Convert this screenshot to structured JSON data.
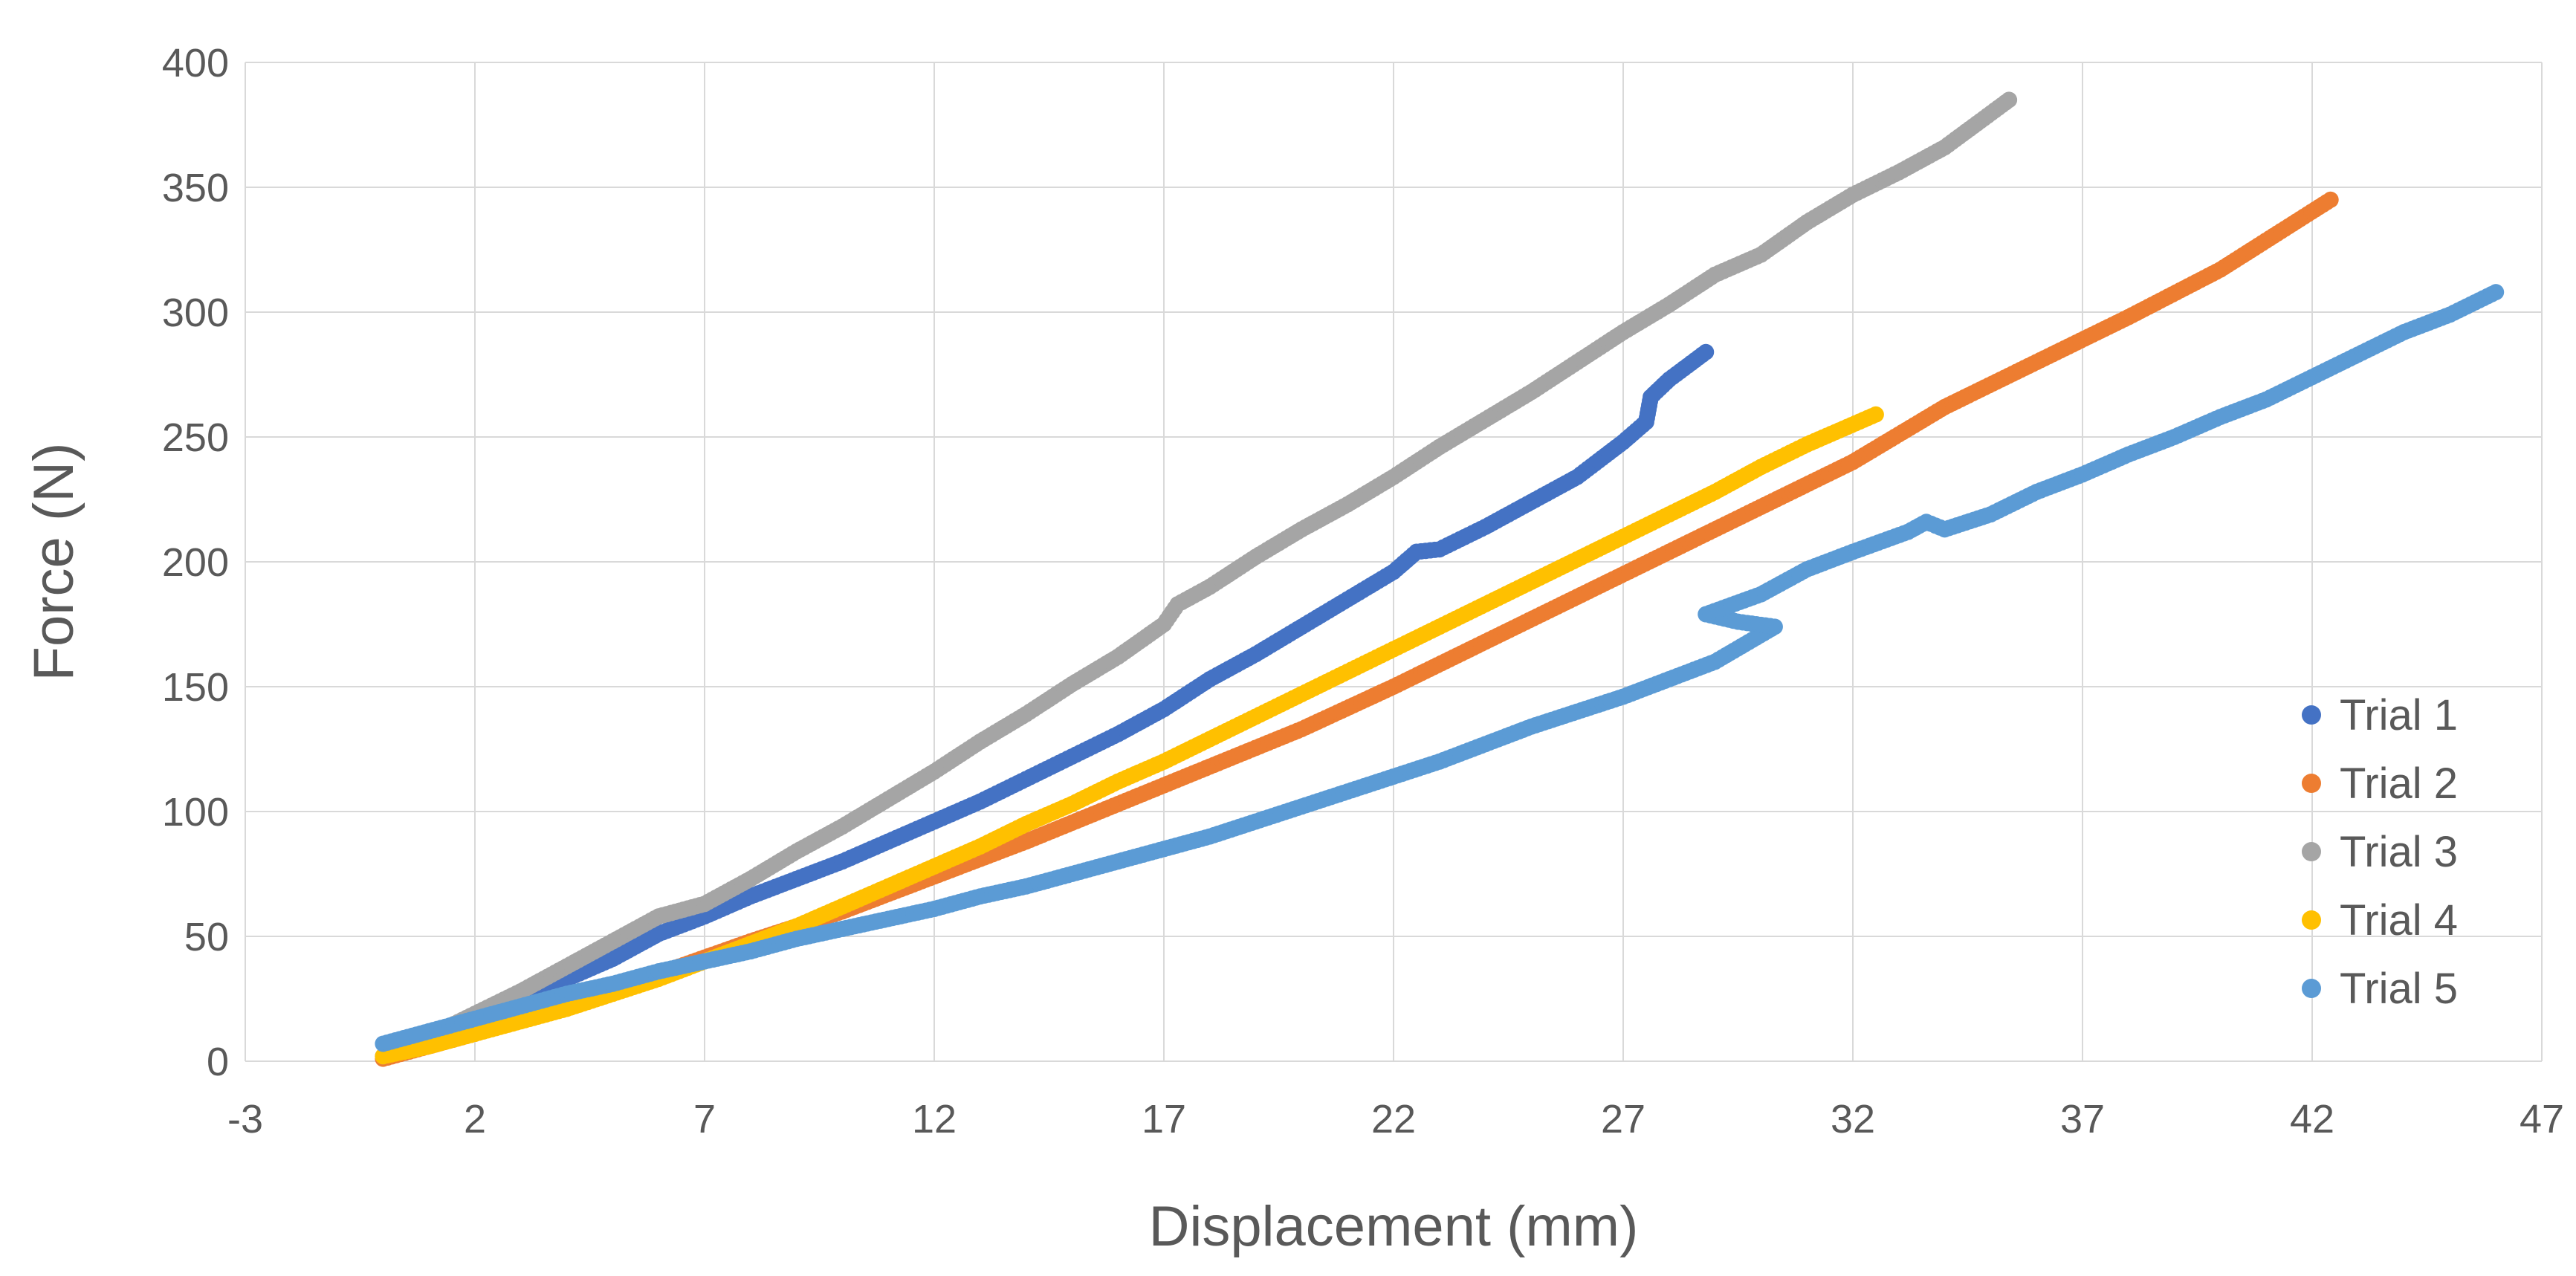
{
  "chart_data": {
    "type": "scatter",
    "title": "",
    "xlabel": "Displacement (mm)",
    "ylabel": "Force (N)",
    "xlim": [
      -3,
      47
    ],
    "ylim": [
      0,
      400
    ],
    "x_ticks": [
      -3,
      2,
      7,
      12,
      17,
      22,
      27,
      32,
      37,
      42,
      47
    ],
    "y_ticks": [
      0,
      50,
      100,
      150,
      200,
      250,
      300,
      350,
      400
    ],
    "grid": true,
    "legend_position": "right",
    "series": [
      {
        "name": "Trial 1",
        "color": "#4472c4",
        "points": [
          [
            0,
            2
          ],
          [
            1,
            9
          ],
          [
            2,
            17
          ],
          [
            3,
            25
          ],
          [
            4,
            33
          ],
          [
            5,
            41
          ],
          [
            6,
            51
          ],
          [
            7,
            58
          ],
          [
            8,
            66
          ],
          [
            9,
            73
          ],
          [
            10,
            80
          ],
          [
            11,
            88
          ],
          [
            12,
            96
          ],
          [
            13,
            104
          ],
          [
            14,
            113
          ],
          [
            15,
            122
          ],
          [
            16,
            131
          ],
          [
            17,
            141
          ],
          [
            18,
            153
          ],
          [
            19,
            163
          ],
          [
            20,
            174
          ],
          [
            21,
            185
          ],
          [
            22,
            196
          ],
          [
            22.5,
            204
          ],
          [
            23,
            205
          ],
          [
            24,
            214
          ],
          [
            25,
            224
          ],
          [
            26,
            234
          ],
          [
            27,
            248
          ],
          [
            27.5,
            256
          ],
          [
            27.6,
            266
          ],
          [
            28,
            273
          ],
          [
            28.8,
            284
          ]
        ]
      },
      {
        "name": "Trial 2",
        "color": "#ed7d31",
        "points": [
          [
            0,
            1
          ],
          [
            2,
            11
          ],
          [
            4,
            22
          ],
          [
            6,
            35
          ],
          [
            8,
            48
          ],
          [
            10,
            60
          ],
          [
            12,
            74
          ],
          [
            14,
            88
          ],
          [
            16,
            103
          ],
          [
            18,
            118
          ],
          [
            20,
            133
          ],
          [
            22,
            150
          ],
          [
            24,
            168
          ],
          [
            26,
            186
          ],
          [
            28,
            204
          ],
          [
            30,
            222
          ],
          [
            32,
            240
          ],
          [
            34,
            262
          ],
          [
            36,
            280
          ],
          [
            38,
            298
          ],
          [
            40,
            317
          ],
          [
            42.4,
            345
          ]
        ]
      },
      {
        "name": "Trial 3",
        "color": "#a5a5a5",
        "points": [
          [
            0,
            2
          ],
          [
            1,
            10
          ],
          [
            2,
            19
          ],
          [
            3,
            28
          ],
          [
            4,
            38
          ],
          [
            5,
            48
          ],
          [
            6,
            58
          ],
          [
            7,
            63
          ],
          [
            8,
            73
          ],
          [
            9,
            84
          ],
          [
            10,
            94
          ],
          [
            11,
            105
          ],
          [
            12,
            116
          ],
          [
            13,
            128
          ],
          [
            14,
            139
          ],
          [
            15,
            151
          ],
          [
            16,
            162
          ],
          [
            17,
            175
          ],
          [
            17.3,
            183
          ],
          [
            18,
            190
          ],
          [
            19,
            202
          ],
          [
            20,
            213
          ],
          [
            21,
            223
          ],
          [
            22,
            234
          ],
          [
            23,
            246
          ],
          [
            24,
            257
          ],
          [
            25,
            268
          ],
          [
            26,
            280
          ],
          [
            27,
            292
          ],
          [
            28,
            303
          ],
          [
            29,
            315
          ],
          [
            30,
            323
          ],
          [
            31,
            336
          ],
          [
            32,
            347
          ],
          [
            33,
            356
          ],
          [
            34,
            366
          ],
          [
            35.4,
            385
          ]
        ]
      },
      {
        "name": "Trial 4",
        "color": "#ffc000",
        "points": [
          [
            0,
            2
          ],
          [
            1,
            6
          ],
          [
            2,
            11
          ],
          [
            3,
            16
          ],
          [
            4,
            21
          ],
          [
            5,
            27
          ],
          [
            6,
            33
          ],
          [
            7,
            40
          ],
          [
            8,
            47
          ],
          [
            9,
            54
          ],
          [
            10,
            62
          ],
          [
            11,
            70
          ],
          [
            12,
            78
          ],
          [
            13,
            86
          ],
          [
            14,
            95
          ],
          [
            15,
            103
          ],
          [
            16,
            112
          ],
          [
            17,
            120
          ],
          [
            18,
            129
          ],
          [
            19,
            138
          ],
          [
            20,
            147
          ],
          [
            21,
            156
          ],
          [
            22,
            165
          ],
          [
            23,
            174
          ],
          [
            24,
            183
          ],
          [
            25,
            192
          ],
          [
            26,
            201
          ],
          [
            27,
            210
          ],
          [
            28,
            219
          ],
          [
            29,
            228
          ],
          [
            30,
            238
          ],
          [
            31,
            247
          ],
          [
            32.5,
            259
          ]
        ]
      },
      {
        "name": "Trial 5",
        "color": "#5b9bd5",
        "points": [
          [
            0,
            7
          ],
          [
            1,
            12
          ],
          [
            2,
            17
          ],
          [
            3,
            22
          ],
          [
            4,
            27
          ],
          [
            5,
            31
          ],
          [
            6,
            36
          ],
          [
            7,
            40
          ],
          [
            8,
            44
          ],
          [
            9,
            49
          ],
          [
            10,
            53
          ],
          [
            11,
            57
          ],
          [
            12,
            61
          ],
          [
            13,
            66
          ],
          [
            14,
            70
          ],
          [
            15,
            75
          ],
          [
            16,
            80
          ],
          [
            17,
            85
          ],
          [
            18,
            90
          ],
          [
            19,
            96
          ],
          [
            20,
            102
          ],
          [
            21,
            108
          ],
          [
            22,
            114
          ],
          [
            23,
            120
          ],
          [
            24,
            127
          ],
          [
            25,
            134
          ],
          [
            26,
            140
          ],
          [
            27,
            146
          ],
          [
            28,
            153
          ],
          [
            29,
            160
          ],
          [
            30.3,
            174
          ],
          [
            29.5,
            176
          ],
          [
            28.8,
            179
          ],
          [
            30,
            187
          ],
          [
            31,
            197
          ],
          [
            32,
            204
          ],
          [
            33.2,
            212
          ],
          [
            33.6,
            216
          ],
          [
            34,
            213
          ],
          [
            35,
            219
          ],
          [
            36,
            228
          ],
          [
            37,
            235
          ],
          [
            38,
            243
          ],
          [
            39,
            250
          ],
          [
            40,
            258
          ],
          [
            41,
            265
          ],
          [
            42,
            274
          ],
          [
            43,
            283
          ],
          [
            44,
            292
          ],
          [
            45,
            299
          ],
          [
            46,
            308
          ]
        ]
      }
    ]
  }
}
